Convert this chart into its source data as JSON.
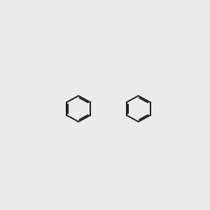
{
  "bg_color": "#ebebeb",
  "bond_color": "#1a1a1a",
  "N_color": "#2020cc",
  "O_color": "#cc2020",
  "NH_color": "#4a9090",
  "line_width": 1.4,
  "font_size": 9
}
